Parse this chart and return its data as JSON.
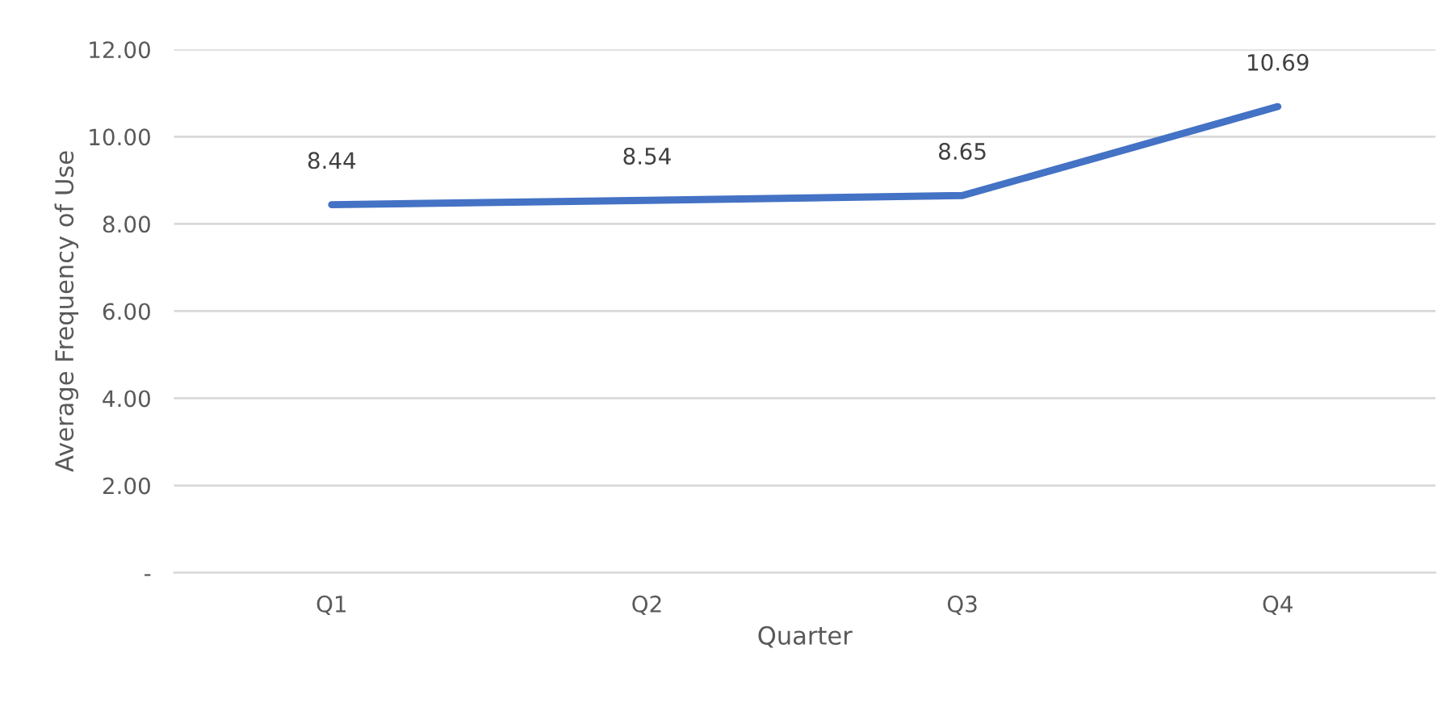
{
  "chart_data": {
    "type": "line",
    "xlabel": "Quarter",
    "ylabel": "Average Frequency of Use",
    "categories": [
      "Q1",
      "Q2",
      "Q3",
      "Q4"
    ],
    "series": [
      {
        "color": "#4472c4",
        "values": [
          8.44,
          8.54,
          8.65,
          10.69
        ]
      }
    ],
    "ylim": [
      0,
      12
    ],
    "yticks": [
      {
        "value": 0,
        "label": "-"
      },
      {
        "value": 2,
        "label": "2.00"
      },
      {
        "value": 4,
        "label": "4.00"
      },
      {
        "value": 6,
        "label": "6.00"
      },
      {
        "value": 8,
        "label": "8.00"
      },
      {
        "value": 10,
        "label": "10.00"
      },
      {
        "value": 12,
        "label": "12.00"
      }
    ],
    "grid": "y",
    "data_labels": true,
    "marker": "none",
    "line_style": "solid"
  }
}
